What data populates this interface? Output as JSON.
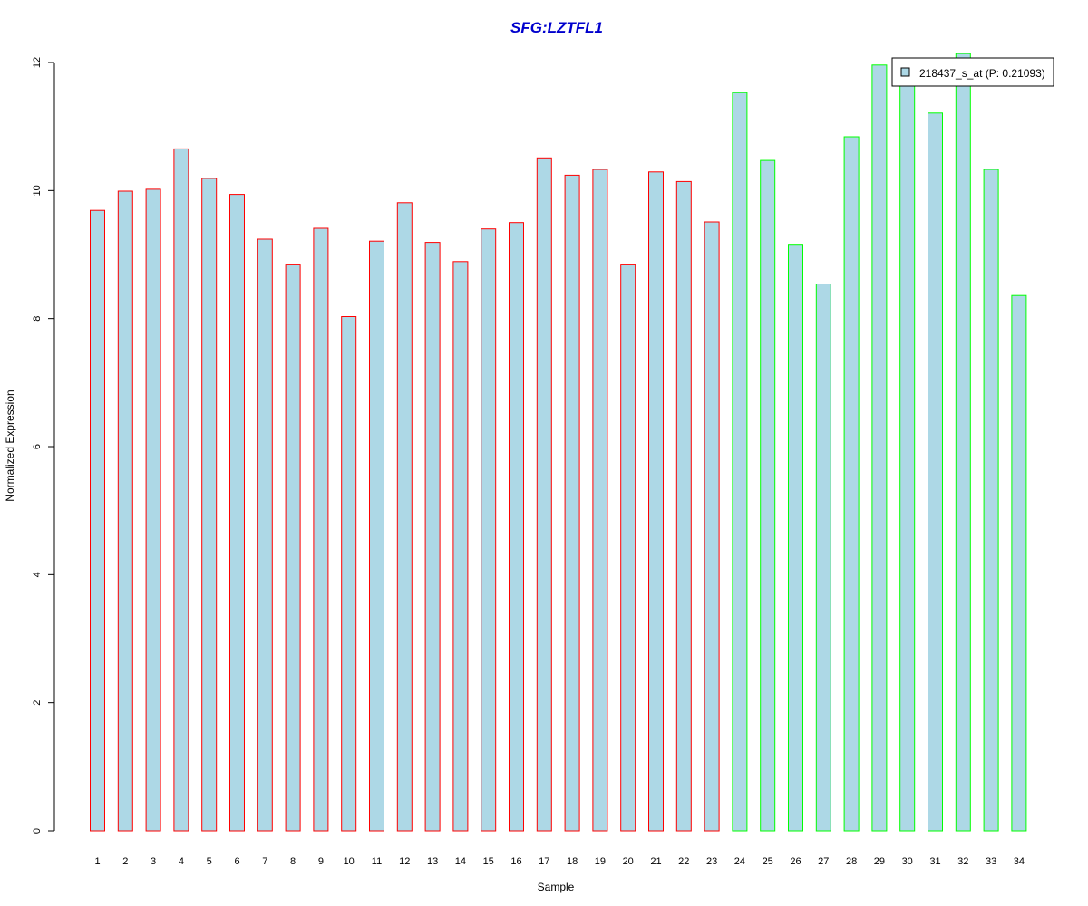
{
  "chart_data": {
    "type": "bar",
    "title": "SFG:LZTFL1",
    "xlabel": "Sample",
    "ylabel": "Normalized Expression",
    "categories": [
      "1",
      "2",
      "3",
      "4",
      "5",
      "6",
      "7",
      "8",
      "9",
      "10",
      "11",
      "12",
      "13",
      "14",
      "15",
      "16",
      "17",
      "18",
      "19",
      "20",
      "21",
      "22",
      "23",
      "24",
      "25",
      "26",
      "27",
      "28",
      "29",
      "30",
      "31",
      "32",
      "33",
      "34"
    ],
    "series": [
      {
        "name": "218437_s_at (P: 0.21093)",
        "values": [
          9.69,
          9.99,
          10.02,
          10.65,
          10.19,
          9.94,
          9.24,
          8.85,
          9.41,
          8.03,
          9.21,
          9.81,
          9.19,
          8.89,
          9.4,
          9.5,
          10.51,
          10.24,
          10.33,
          8.85,
          10.29,
          10.14,
          9.51,
          11.53,
          10.47,
          9.16,
          8.54,
          10.84,
          11.96,
          11.81,
          11.21,
          12.14,
          10.33,
          8.36
        ]
      }
    ],
    "groups": [
      1,
      1,
      1,
      1,
      1,
      1,
      1,
      1,
      1,
      1,
      1,
      1,
      1,
      1,
      1,
      1,
      1,
      1,
      1,
      1,
      1,
      1,
      1,
      2,
      2,
      2,
      2,
      2,
      2,
      2,
      2,
      2,
      2,
      2
    ],
    "group_colors": {
      "1": "#ff0000",
      "2": "#00ff00"
    },
    "bar_fill": "#add8e6",
    "title_color": "#0000cd",
    "ylim": [
      0,
      12
    ],
    "yticks": [
      0,
      2,
      4,
      6,
      8,
      10,
      12
    ],
    "grid": false,
    "legend_position": "top-right"
  }
}
